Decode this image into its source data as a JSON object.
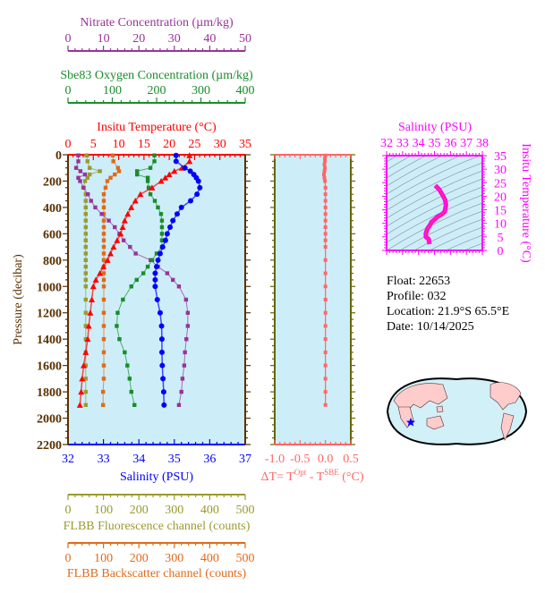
{
  "colors": {
    "nitrate": "#993399",
    "oxygen": "#1a8c2a",
    "temperature": "#ff0000",
    "salinity": "#0000ff",
    "fluorescence": "#9a9a30",
    "backscatter": "#e06a1a",
    "delta_t": "#ff6666",
    "ts": "#ff00ff",
    "pressure_axis": "#5a3000",
    "plot_bg": "#cdeef8",
    "land": "#ffcccc"
  },
  "info": {
    "float": "Float:  22653",
    "profile": "Profile:  032",
    "location": "Location:  21.9°S  65.5°E",
    "date": "Date:  10/14/2025"
  },
  "chart_data": [
    {
      "type": "line",
      "panel": "profiles",
      "ylabel": "Pressure (decibar)",
      "ylim": [
        2200,
        0
      ],
      "yticks": [
        "0",
        "200",
        "400",
        "600",
        "800",
        "1000",
        "1200",
        "1400",
        "1600",
        "1800",
        "2000",
        "2200"
      ],
      "pressure": [
        5,
        50,
        100,
        125,
        150,
        175,
        200,
        250,
        300,
        350,
        400,
        450,
        500,
        550,
        600,
        650,
        700,
        750,
        800,
        850,
        900,
        950,
        1000,
        1100,
        1200,
        1300,
        1400,
        1500,
        1600,
        1700,
        1800,
        1900
      ],
      "axes": {
        "nitrate": {
          "label": "Nitrate Concentration (µm/kg)",
          "xlim": [
            0,
            50
          ],
          "ticks": [
            "0",
            "10",
            "20",
            "30",
            "40",
            "50"
          ]
        },
        "oxygen": {
          "label": "Sbe83 Oxygen Concentration (µm/kg)",
          "xlim": [
            0,
            400
          ],
          "ticks": [
            "0",
            "100",
            "200",
            "300",
            "400"
          ]
        },
        "temperature": {
          "label": "Insitu Temperature (°C)",
          "xlim": [
            0,
            35
          ],
          "ticks": [
            "0",
            "5",
            "10",
            "15",
            "20",
            "25",
            "30",
            "35"
          ]
        },
        "salinity": {
          "label": "Salinity (PSU)",
          "xlim": [
            32,
            37
          ],
          "ticks": [
            "32",
            "33",
            "34",
            "35",
            "36",
            "37"
          ]
        },
        "fluorescence": {
          "label": "FLBB Fluorescence channel (counts)",
          "xlim": [
            0,
            500
          ],
          "ticks": [
            "0",
            "100",
            "200",
            "300",
            "400",
            "500"
          ]
        },
        "backscatter": {
          "label": "FLBB Backscatter channel (counts)",
          "xlim": [
            0,
            500
          ],
          "ticks": [
            "0",
            "100",
            "200",
            "300",
            "400",
            "500"
          ]
        }
      },
      "series": {
        "temperature": [
          24.0,
          24.0,
          22.5,
          21.0,
          20.0,
          19.2,
          18.4,
          16.6,
          14.3,
          13.3,
          12.5,
          11.8,
          11.2,
          10.8,
          10.4,
          9.7,
          9.0,
          8.4,
          7.8,
          7.0,
          6.3,
          5.5,
          5.0,
          4.7,
          4.4,
          4.1,
          3.9,
          3.5,
          3.1,
          2.8,
          2.6,
          2.35
        ],
        "salinity": [
          35.05,
          35.05,
          35.3,
          35.45,
          35.55,
          35.62,
          35.68,
          35.72,
          35.64,
          35.46,
          35.2,
          35.08,
          34.96,
          34.88,
          34.8,
          34.75,
          34.67,
          34.6,
          34.54,
          34.5,
          34.46,
          34.46,
          34.46,
          34.52,
          34.6,
          34.64,
          34.65,
          34.65,
          34.66,
          34.68,
          34.7,
          34.71
        ],
        "oxygen": [
          195,
          195,
          186,
          156,
          156,
          180,
          180,
          182,
          186,
          196,
          203,
          210,
          212,
          212,
          212,
          212,
          212,
          200,
          190,
          180,
          170,
          155,
          143,
          124,
          112,
          110,
          116,
          128,
          134,
          139,
          143,
          150
        ],
        "nitrate": [
          2.9,
          2.9,
          2.3,
          3.5,
          4.8,
          2.9,
          3.4,
          4.4,
          5.6,
          6.5,
          7.7,
          9.5,
          11.5,
          13.2,
          14.5,
          15.7,
          17.5,
          19.1,
          23.3,
          25.4,
          28.0,
          29.6,
          31.3,
          33.3,
          33.8,
          33.8,
          33.4,
          33.0,
          32.8,
          32.3,
          32.0,
          31.3
        ],
        "fluorescence": [
          52,
          55,
          61,
          90,
          61,
          55,
          48,
          43,
          50,
          50,
          50,
          50,
          50,
          50,
          50,
          50,
          50,
          50,
          50,
          50,
          50,
          50,
          50,
          50,
          50,
          50,
          50,
          50,
          50,
          50,
          50,
          50
        ],
        "backscatter": [
          126,
          128,
          141,
          144,
          132,
          120,
          111,
          106,
          101,
          101,
          101,
          101,
          101,
          101,
          101,
          101,
          101,
          101,
          101,
          101,
          101,
          101,
          101,
          101,
          101,
          101,
          101,
          101,
          101,
          101,
          99,
          99
        ]
      }
    },
    {
      "type": "line",
      "panel": "delta-t",
      "xlabel": "ΔT= T",
      "xlabel_sup1": "Opt",
      "xlabel_mid": " - T",
      "xlabel_sup2": "SBE",
      "xlabel_end": " (°C)",
      "xlim": [
        -1.0,
        0.5
      ],
      "xticks": [
        "-1.0",
        "-0.5",
        "0.0",
        "0.5"
      ],
      "ylim": [
        2200,
        0
      ],
      "pressure": [
        5,
        25,
        50,
        75,
        100,
        125,
        150,
        175,
        200,
        250,
        300,
        350,
        400,
        450,
        500,
        550,
        600,
        650,
        700,
        800,
        900,
        1000,
        1100,
        1200,
        1300,
        1400,
        1500,
        1600,
        1700,
        1800,
        1900
      ],
      "values": [
        0.0,
        -0.01,
        -0.01,
        -0.02,
        -0.01,
        -0.02,
        -0.03,
        -0.02,
        -0.01,
        0,
        0,
        0,
        0,
        0,
        0,
        0,
        0,
        0,
        0,
        0,
        0,
        0,
        0,
        0,
        0,
        0,
        0,
        0,
        0,
        0,
        0
      ]
    },
    {
      "type": "line",
      "panel": "t-s",
      "xlabel": "Salinity (PSU)",
      "ylabel": "Insitu Temperature (°C)",
      "xlim": [
        32,
        38
      ],
      "ylim": [
        0,
        35
      ],
      "xticks": [
        "32",
        "33",
        "34",
        "35",
        "36",
        "37",
        "38"
      ],
      "yticks": [
        "0",
        "5",
        "10",
        "15",
        "20",
        "25",
        "30",
        "35"
      ]
    }
  ]
}
